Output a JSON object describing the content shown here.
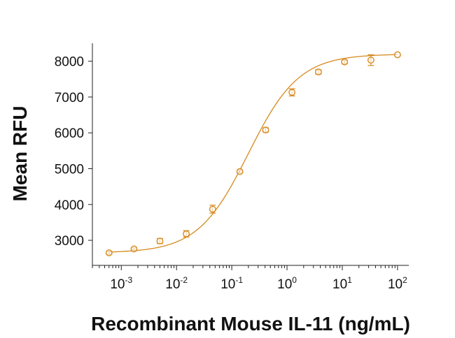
{
  "chart_data": {
    "type": "scatter",
    "title": "",
    "xlabel": "Recombinant Mouse IL-11 (ng/mL)",
    "ylabel": "Mean RFU",
    "x_scale": "log",
    "x_ticks": [
      {
        "value": 0.001,
        "base": "10",
        "exp": "-3"
      },
      {
        "value": 0.01,
        "base": "10",
        "exp": "-2"
      },
      {
        "value": 0.1,
        "base": "10",
        "exp": "-1"
      },
      {
        "value": 1,
        "base": "10",
        "exp": "0"
      },
      {
        "value": 10,
        "base": "10",
        "exp": "1"
      },
      {
        "value": 100,
        "base": "10",
        "exp": "2"
      }
    ],
    "y_ticks": [
      "3000",
      "4000",
      "5000",
      "6000",
      "7000",
      "8000"
    ],
    "xlim": [
      0.0003,
      160
    ],
    "ylim": [
      2300,
      8500
    ],
    "color": "#D68A1E",
    "grid": false,
    "legend": "none",
    "series": [
      {
        "x": [
          0.0006,
          0.0017,
          0.005,
          0.015,
          0.045,
          0.14,
          0.41,
          1.23,
          3.7,
          11,
          33,
          100
        ],
        "y": [
          2650,
          2760,
          2980,
          3180,
          3870,
          4920,
          6080,
          7130,
          7700,
          7980,
          8030,
          8180
        ],
        "error": [
          40,
          30,
          70,
          90,
          110,
          40,
          60,
          100,
          60,
          50,
          150,
          0
        ]
      }
    ],
    "fit_curve": {
      "model": "4PL",
      "bottom": 2650,
      "top": 8200,
      "ec50": 0.2,
      "hill": 0.95
    }
  }
}
